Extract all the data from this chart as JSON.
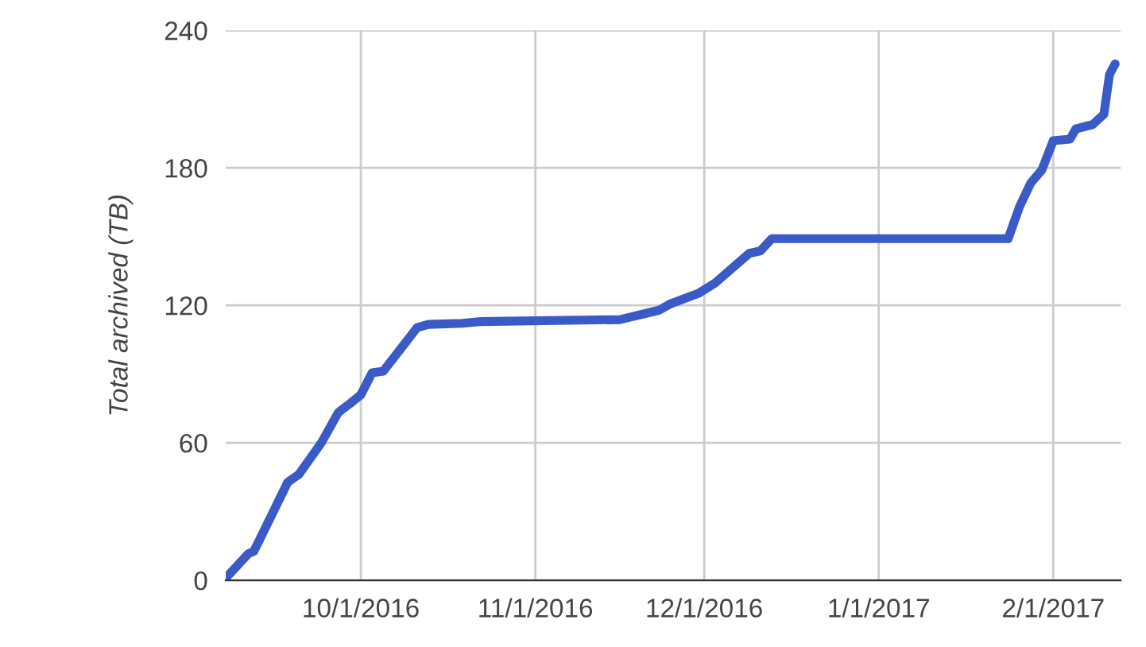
{
  "chart_data": {
    "type": "line",
    "ylabel": "Total archived (TB)",
    "x": [
      "2016-09-07",
      "2016-09-11",
      "2016-09-12",
      "2016-09-15",
      "2016-09-18",
      "2016-09-20",
      "2016-09-24",
      "2016-09-27",
      "2016-09-29",
      "2016-10-01",
      "2016-10-03",
      "2016-10-05",
      "2016-10-11",
      "2016-10-13",
      "2016-10-19",
      "2016-10-22",
      "2016-11-16",
      "2016-11-23",
      "2016-11-25",
      "2016-11-30",
      "2016-12-03",
      "2016-12-09",
      "2016-12-11",
      "2016-12-13",
      "2017-01-24",
      "2017-01-26",
      "2017-01-28",
      "2017-01-30",
      "2017-02-01",
      "2017-02-04",
      "2017-02-05",
      "2017-02-08",
      "2017-02-10",
      "2017-02-11",
      "2017-02-12"
    ],
    "series": [
      {
        "color": "#3a5bc7",
        "values": [
          1,
          11.6,
          12.7,
          27.7,
          42.8,
          46.3,
          60.1,
          73.3,
          77,
          81,
          90.6,
          91.3,
          110.3,
          111.7,
          112.2,
          112.9,
          113.8,
          117.9,
          120.7,
          125.3,
          129.9,
          142.7,
          143.8,
          149.1,
          149.1,
          163,
          173.4,
          179.2,
          191.9,
          192.6,
          197,
          198.9,
          203.4,
          220.8,
          225.4
        ]
      }
    ],
    "xlim": [
      "2016-09-07",
      "2017-02-13"
    ],
    "xticks": [
      {
        "value": "2016-10-01",
        "label": "10/1/2016"
      },
      {
        "value": "2016-11-01",
        "label": "11/1/2016"
      },
      {
        "value": "2016-12-01",
        "label": "12/1/2016"
      },
      {
        "value": "2017-01-01",
        "label": "1/1/2017"
      },
      {
        "value": "2017-02-01",
        "label": "2/1/2017"
      }
    ],
    "ylim": [
      0,
      240
    ],
    "yticks": [
      0,
      60,
      120,
      180,
      240
    ],
    "grid": true,
    "legend": false,
    "marker": "none",
    "line_style": "solid"
  }
}
